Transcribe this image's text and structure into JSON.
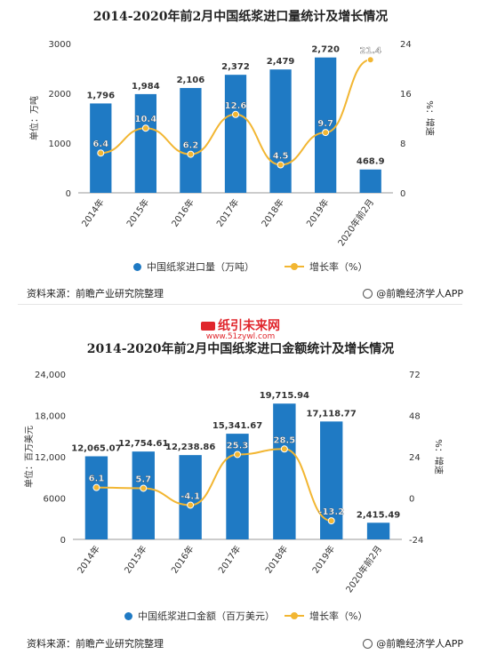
{
  "colors": {
    "bar": "#1f7ac4",
    "line": "#f2b632",
    "axis": "#999999",
    "label": "#333333"
  },
  "chart_data": [
    {
      "type": "bar",
      "title": "2014-2020年前2月中国纸浆进口量统计及增长情况",
      "categories": [
        "2014年",
        "2015年",
        "2016年",
        "2017年",
        "2018年",
        "2019年",
        "2020年前2月"
      ],
      "ylabel": "单位：万吨",
      "y2label": "%：增速",
      "ylim": [
        0,
        3000
      ],
      "y_ticks": [
        "0",
        "1000",
        "2000",
        "3000"
      ],
      "y2lim": [
        0,
        24
      ],
      "y2_ticks": [
        "0",
        "8",
        "16",
        "24"
      ],
      "series": [
        {
          "name": "中国纸浆进口量（万吨）",
          "kind": "bar",
          "axis": "left",
          "values": [
            1796,
            1984,
            2106,
            2372,
            2479,
            2720,
            468.9
          ],
          "labels": [
            "1,796",
            "1,984",
            "2,106",
            "2,372",
            "2,479",
            "2,720",
            "468.9"
          ]
        },
        {
          "name": "增长率（%）",
          "kind": "line",
          "axis": "right",
          "values": [
            6.4,
            10.4,
            6.2,
            12.6,
            4.5,
            9.7,
            21.4
          ],
          "labels": [
            "6.4",
            "10.4",
            "6.2",
            "12.6",
            "4.5",
            "9.7",
            "21.4"
          ]
        }
      ],
      "legend_position": "bottom",
      "grid": false
    },
    {
      "type": "bar",
      "title": "2014-2020年前2月中国纸浆进口金额统计及增长情况",
      "categories": [
        "2014年",
        "2015年",
        "2016年",
        "2017年",
        "2018年",
        "2019年",
        "2020年前2月"
      ],
      "ylabel": "单位：百万美元",
      "y2label": "%：增速",
      "ylim": [
        0,
        24000
      ],
      "y_ticks": [
        "0",
        "6000",
        "12,000",
        "18,000",
        "24,000"
      ],
      "y2lim": [
        -24,
        72
      ],
      "y2_ticks": [
        "-24",
        "0",
        "24",
        "48",
        "72"
      ],
      "series": [
        {
          "name": "中国纸浆进口金额（百万美元）",
          "kind": "bar",
          "axis": "left",
          "values": [
            12065.07,
            12754.61,
            12238.86,
            15341.67,
            19715.94,
            17118.77,
            2415.49
          ],
          "labels": [
            "12,065.07",
            "12,754.61",
            "12,238.86",
            "15,341.67",
            "19,715.94",
            "17,118.77",
            "2,415.49"
          ]
        },
        {
          "name": "增长率（%）",
          "kind": "line",
          "axis": "right",
          "values": [
            6.1,
            5.7,
            -4.1,
            25.3,
            28.5,
            -13.2,
            null
          ],
          "labels": [
            "6.1",
            "5.7",
            "-4.1",
            "25.3",
            "28.5",
            "-13.2",
            ""
          ]
        }
      ],
      "legend_position": "bottom",
      "grid": false
    }
  ],
  "footer": {
    "source": "资料来源：前瞻产业研究院整理",
    "brand": "@前瞻经济学人APP"
  },
  "watermark": {
    "name": "纸引未来网",
    "url": "www.51zywl.com"
  }
}
